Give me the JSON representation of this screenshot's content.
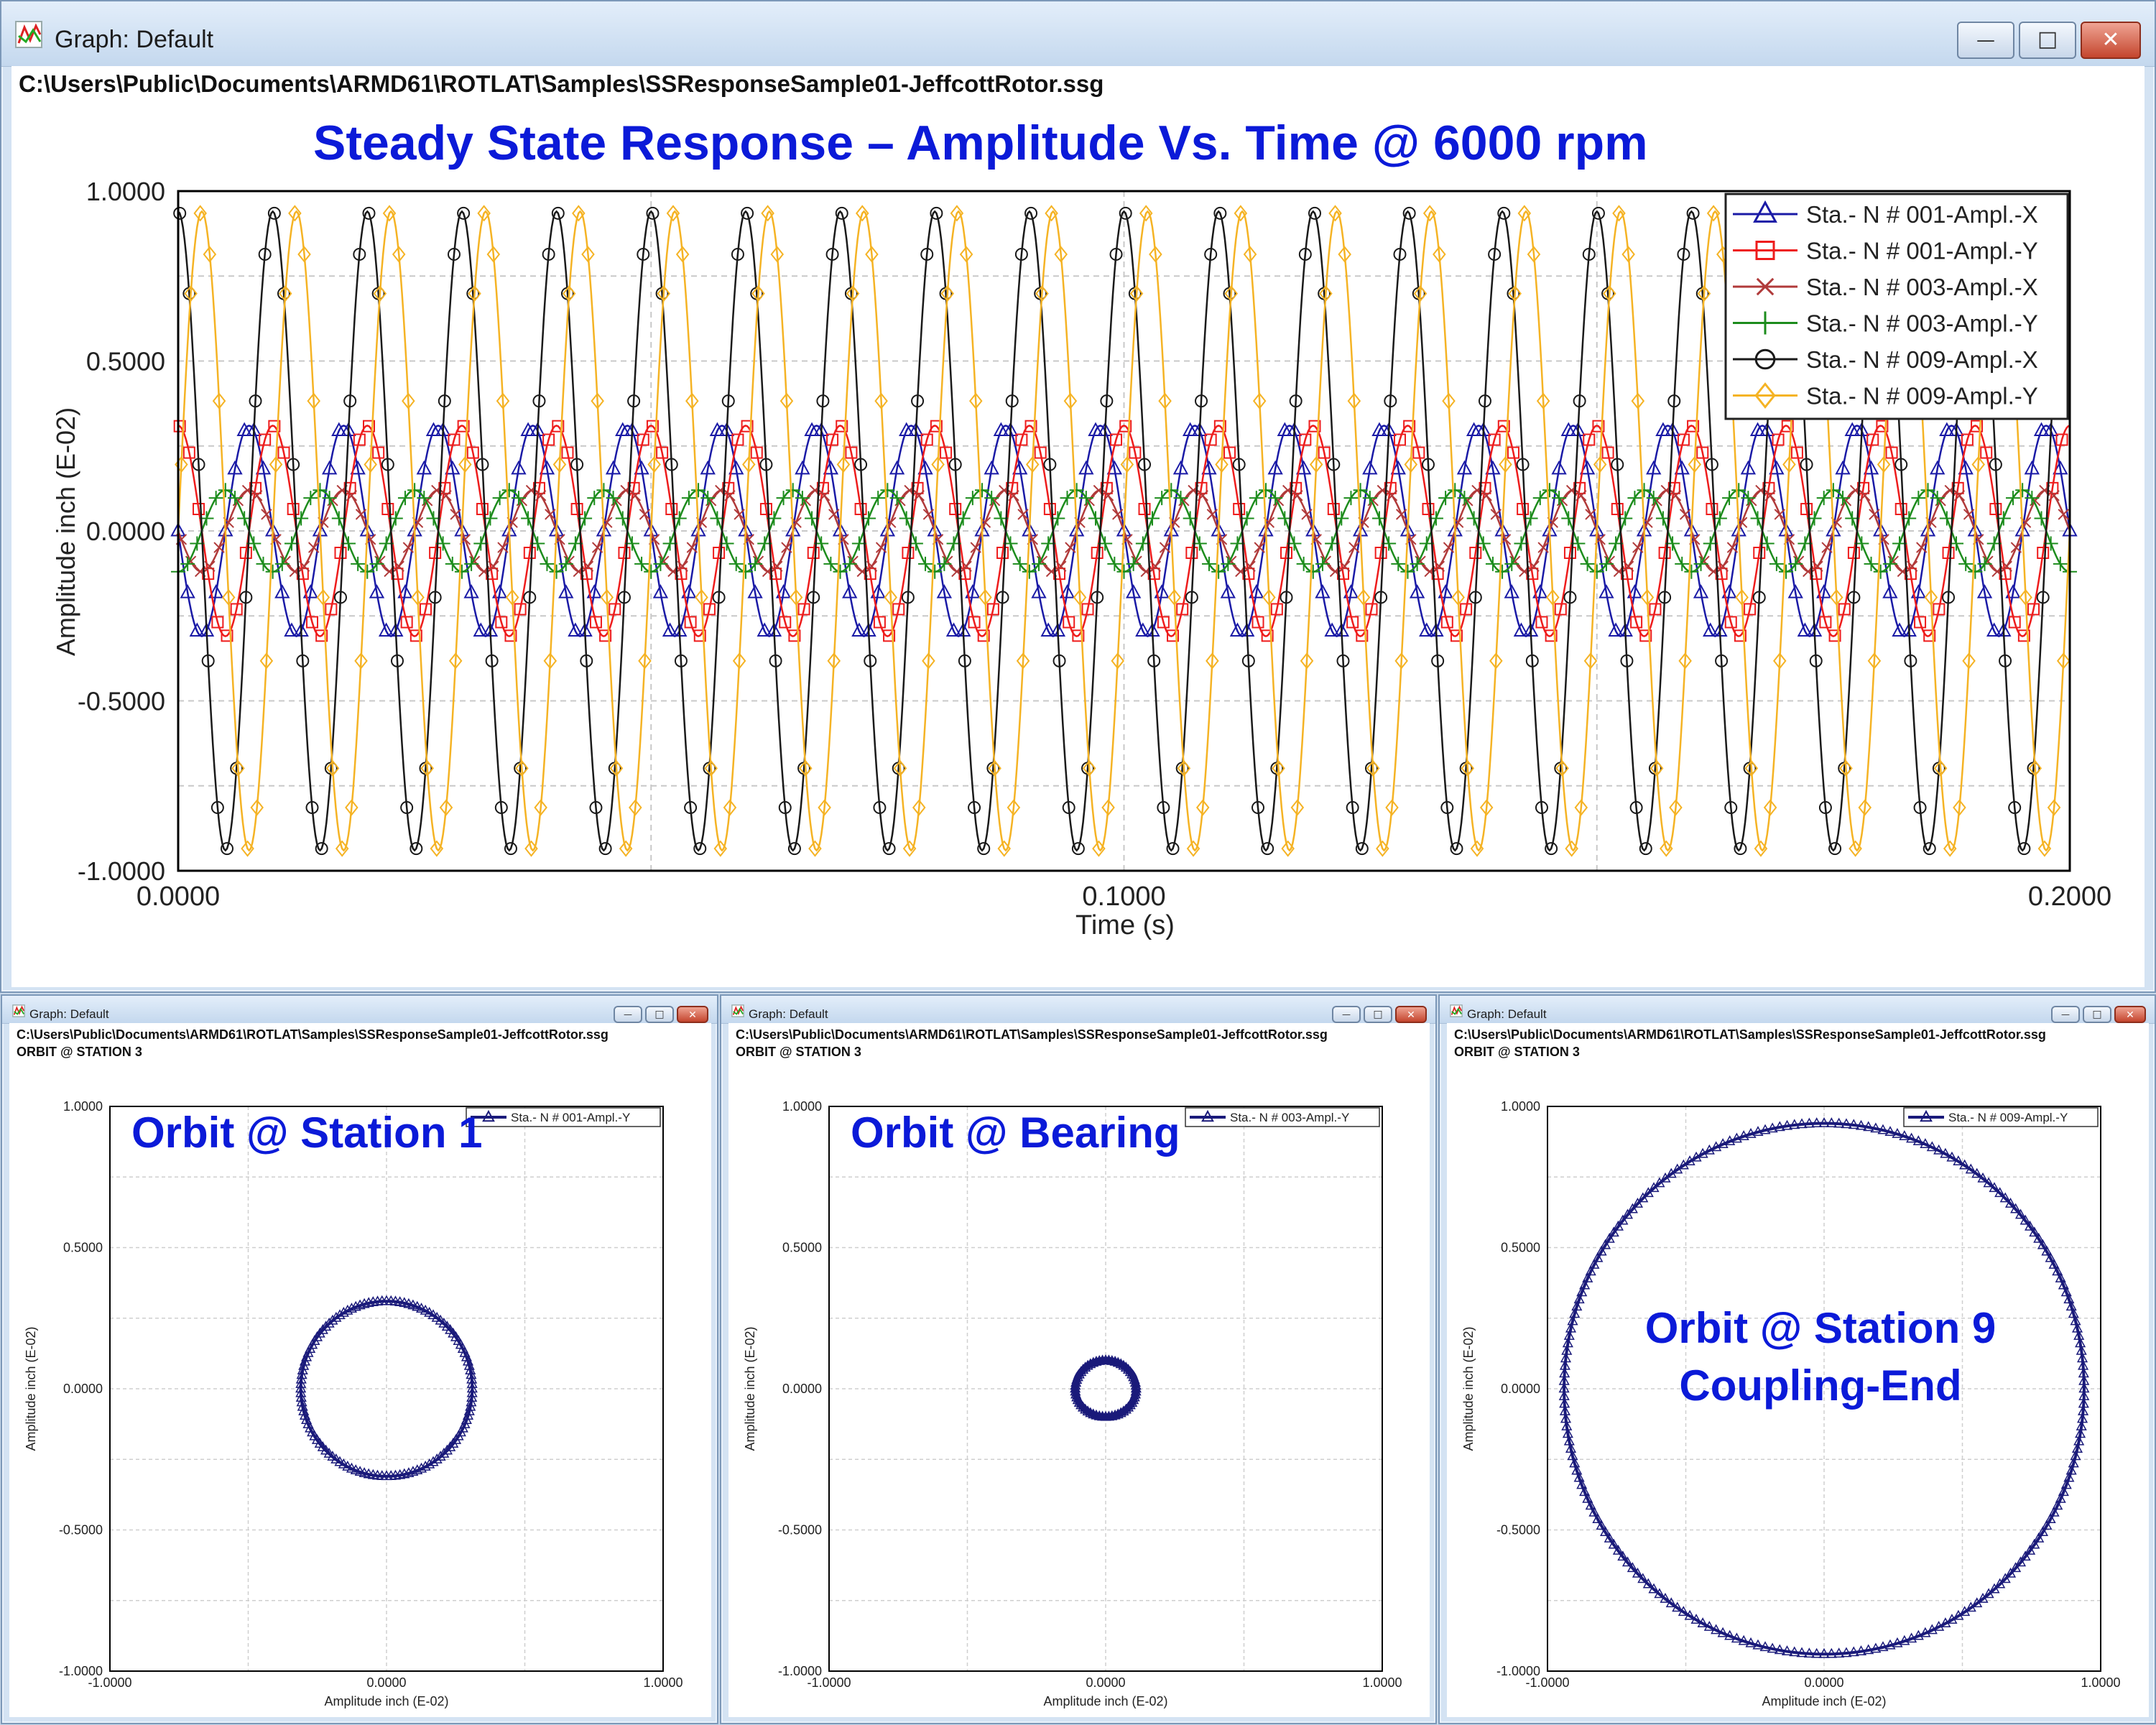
{
  "main_window": {
    "title": "Graph: Default",
    "file_path": "C:\\Users\\Public\\Documents\\ARMD61\\ROTLAT\\Samples\\SSResponseSample01-JeffcottRotor.ssg",
    "heading": "Steady State Response – Amplitude Vs. Time @ 6000 rpm",
    "controls": {
      "minimize": "—",
      "maximize": "□",
      "close": "✕"
    }
  },
  "orbit_windows": [
    {
      "title": "Graph: Default",
      "file_path": "C:\\Users\\Public\\Documents\\ARMD61\\ROTLAT\\Samples\\SSResponseSample01-JeffcottRotor.ssg",
      "subtitle": "ORBIT @ STATION 3",
      "overlay": [
        "Orbit @ Station 1"
      ]
    },
    {
      "title": "Graph: Default",
      "file_path": "C:\\Users\\Public\\Documents\\ARMD61\\ROTLAT\\Samples\\SSResponseSample01-JeffcottRotor.ssg",
      "subtitle": "ORBIT @ STATION 3",
      "overlay": [
        "Orbit @ Bearing"
      ]
    },
    {
      "title": "Graph: Default",
      "file_path": "C:\\Users\\Public\\Documents\\ARMD61\\ROTLAT\\Samples\\SSResponseSample01-JeffcottRotor.ssg",
      "subtitle": "ORBIT @ STATION 3",
      "overlay": [
        "Orbit @ Station 9",
        "Coupling-End"
      ]
    }
  ],
  "chart_data": [
    {
      "type": "line",
      "xlabel": "Time (s)",
      "ylabel": "Amplitude inch (E-02)",
      "xlim": [
        0,
        0.2
      ],
      "ylim": [
        -1,
        1
      ],
      "x_ticks": [
        "0.0000",
        "0.1000",
        "0.2000"
      ],
      "y_ticks": [
        "1.0000",
        "0.5000",
        "0.0000",
        "-0.5000",
        "-1.0000"
      ],
      "grid": true,
      "legend_position": "top-right",
      "frequency_hz": 100,
      "series": [
        {
          "name": "Sta.- N # 001-Ampl.-X",
          "color": "#1a1aa6",
          "marker": "triangle",
          "amplitude": 0.31,
          "phase_deg": 180
        },
        {
          "name": "Sta.- N # 001-Ampl.-Y",
          "color": "#ee1c1c",
          "marker": "square",
          "amplitude": 0.31,
          "phase_deg": 90
        },
        {
          "name": "Sta.- N # 003-Ampl.-X",
          "color": "#b03a3a",
          "marker": "x",
          "amplitude": 0.12,
          "phase_deg": 180
        },
        {
          "name": "Sta.- N # 003-Ampl.-Y",
          "color": "#1c8c1c",
          "marker": "plus",
          "amplitude": 0.12,
          "phase_deg": 270
        },
        {
          "name": "Sta.- N # 009-Ampl.-X",
          "color": "#1a1a1a",
          "marker": "circle",
          "amplitude": 0.94,
          "phase_deg": 90
        },
        {
          "name": "Sta.- N # 009-Ampl.-Y",
          "color": "#f5b324",
          "marker": "diamond",
          "amplitude": 0.94,
          "phase_deg": 0
        }
      ]
    },
    {
      "type": "scatter",
      "xlabel": "Amplitude inch (E-02)",
      "ylabel": "Amplitude inch (E-02)",
      "xlim": [
        -1,
        1
      ],
      "ylim": [
        -1,
        1
      ],
      "x_ticks": [
        "-1.0000",
        "0.0000",
        "1.0000"
      ],
      "y_ticks": [
        "1.0000",
        "0.5000",
        "0.0000",
        "-0.5000",
        "-1.0000"
      ],
      "grid": true,
      "legend_position": "top-right",
      "series": [
        {
          "name": "Sta.- N # 001-Ampl.-Y",
          "color": "#1a1a7a",
          "marker": "triangle",
          "radius_x": 0.31,
          "radius_y": 0.31,
          "center": [
            0,
            0
          ]
        }
      ]
    },
    {
      "type": "scatter",
      "xlabel": "Amplitude inch (E-02)",
      "ylabel": "Amplitude inch (E-02)",
      "xlim": [
        -1,
        1
      ],
      "ylim": [
        -1,
        1
      ],
      "x_ticks": [
        "-1.0000",
        "0.0000",
        "1.0000"
      ],
      "y_ticks": [
        "1.0000",
        "0.5000",
        "0.0000",
        "-0.5000",
        "-1.0000"
      ],
      "grid": true,
      "legend_position": "top-right",
      "series": [
        {
          "name": "Sta.- N # 003-Ampl.-Y",
          "color": "#1a1a7a",
          "marker": "triangle",
          "radius_x": 0.11,
          "radius_y": 0.1,
          "center": [
            0,
            0
          ]
        }
      ]
    },
    {
      "type": "scatter",
      "xlabel": "Amplitude inch (E-02)",
      "ylabel": "Amplitude inch (E-02)",
      "xlim": [
        -1,
        1
      ],
      "ylim": [
        -1,
        1
      ],
      "x_ticks": [
        "-1.0000",
        "0.0000",
        "1.0000"
      ],
      "y_ticks": [
        "1.0000",
        "0.5000",
        "0.0000",
        "-0.5000",
        "-1.0000"
      ],
      "grid": true,
      "legend_position": "top-right",
      "series": [
        {
          "name": "Sta.- N # 009-Ampl.-Y",
          "color": "#1a1a7a",
          "marker": "triangle",
          "radius_x": 0.94,
          "radius_y": 0.94,
          "center": [
            0,
            0
          ]
        }
      ]
    }
  ]
}
